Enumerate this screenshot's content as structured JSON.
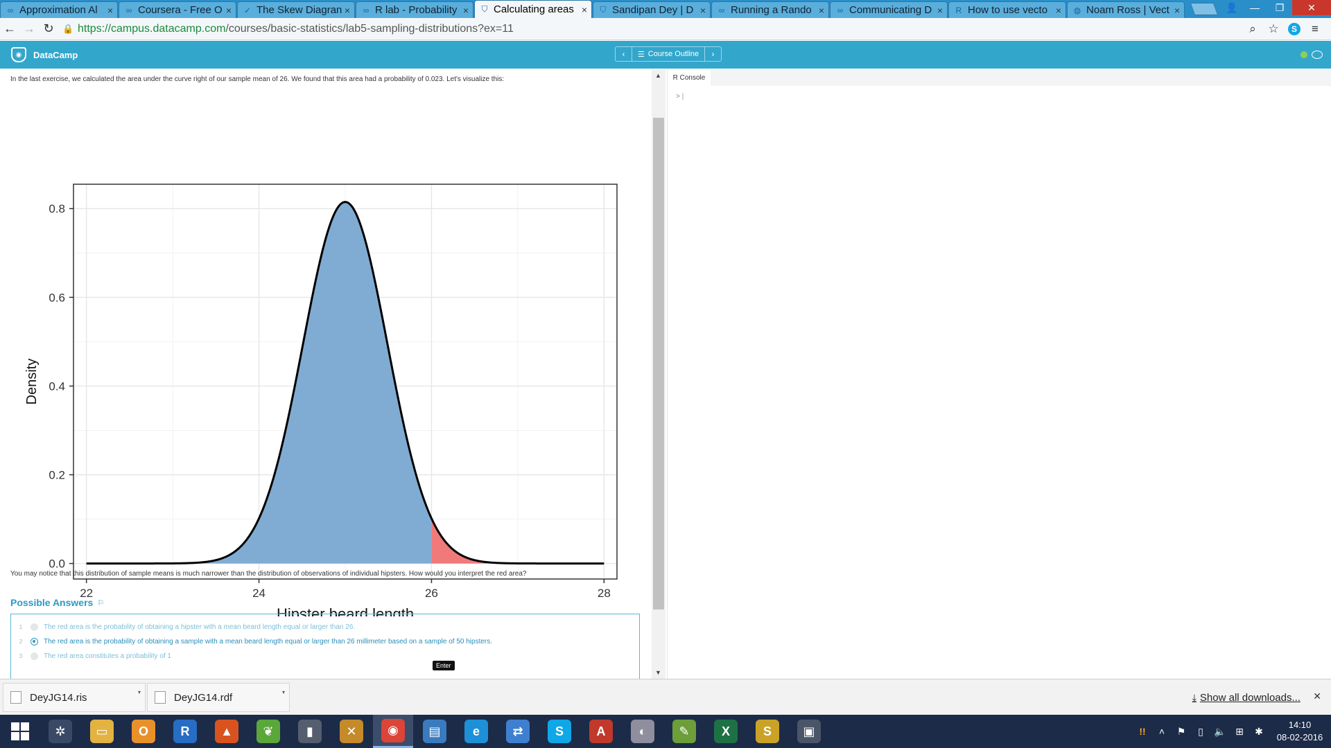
{
  "browser": {
    "tabs": [
      {
        "label": "Approximation Al",
        "icon": "coursera-icon",
        "active": false
      },
      {
        "label": "Coursera - Free O",
        "icon": "coursera-icon",
        "active": false
      },
      {
        "label": "The Skew Diagran",
        "icon": "check-icon",
        "active": false
      },
      {
        "label": "R lab - Probability",
        "icon": "coursera-icon",
        "active": false
      },
      {
        "label": "Calculating areas",
        "icon": "datacamp-icon",
        "active": true
      },
      {
        "label": "Sandipan Dey | D",
        "icon": "datacamp-icon",
        "active": false
      },
      {
        "label": "Running a Rando",
        "icon": "coursera-icon",
        "active": false
      },
      {
        "label": "Communicating D",
        "icon": "coursera-icon",
        "active": false
      },
      {
        "label": "How to use vecto",
        "icon": "r-icon",
        "active": false
      },
      {
        "label": "Noam Ross | Vect",
        "icon": "github-icon",
        "active": false
      }
    ],
    "url_host": "https://campus.datacamp.com",
    "url_path": "/courses/basic-statistics/lab5-sampling-distributions?ex=11"
  },
  "header": {
    "brand": "DataCamp",
    "course_outline": "Course Outline",
    "status_color": "#8fd14f"
  },
  "exercise": {
    "intro": "In the last exercise, we calculated the area under the curve right of our sample mean of 26. We found that this area had a probability of 0.023. Let's visualize this:",
    "question": "You may notice that this distribution of sample means is much narrower than the distribution of observations of individual hipsters. How would you interpret the red area?",
    "answers_title": "Possible Answers",
    "answers": [
      {
        "num": "1",
        "text": "The red area is the probability of obtaining a hipster with a mean beard length equal or larger than 26.",
        "selected": false
      },
      {
        "num": "2",
        "text": "The red area is the probability of obtaining a sample with a mean beard length equal or larger than 26 millimeter based on a sample of 50 hipsters.",
        "selected": true
      },
      {
        "num": "3",
        "text": "The red area constitutes a probability of 1",
        "selected": false
      }
    ],
    "tooltip": "Enter"
  },
  "chart_data": {
    "type": "area",
    "xlabel": "Hipster beard length",
    "ylabel": "Density",
    "xlim": [
      21.85,
      28.15
    ],
    "ylim": [
      -0.035,
      0.855
    ],
    "xticks": [
      "22",
      "24",
      "26",
      "28"
    ],
    "xtick_values": [
      22,
      24,
      26,
      28
    ],
    "yticks": [
      "0.0",
      "0.2",
      "0.4",
      "0.6",
      "0.8"
    ],
    "ytick_values": [
      0,
      0.2,
      0.4,
      0.6,
      0.8
    ],
    "distribution": {
      "mean": 25,
      "sd": 0.49,
      "peak": 0.815
    },
    "x_range": [
      22,
      28
    ],
    "series": [
      {
        "values_desc": "body",
        "from": 22,
        "to": 26,
        "color": "#80acd3"
      },
      {
        "values_desc": "tail",
        "from": 26,
        "to": 28,
        "color": "#f07a7a"
      }
    ],
    "line_color": "#000000",
    "grid": true,
    "legend": "none"
  },
  "console": {
    "tab_label": "R Console",
    "prompt": ">"
  },
  "downloads": {
    "items": [
      "DeyJG14.ris",
      "DeyJG14.rdf"
    ],
    "show_all": "Show all downloads..."
  },
  "taskbar": {
    "apps": [
      {
        "icon": "chrome-settings-icon",
        "color": "#3a4a66",
        "glyph": "✲"
      },
      {
        "icon": "file-explorer-icon",
        "color": "#e3b341",
        "glyph": "▭"
      },
      {
        "icon": "outlook-icon",
        "color": "#e8912b",
        "glyph": "O"
      },
      {
        "icon": "r-app-icon",
        "color": "#276dc3",
        "glyph": "R"
      },
      {
        "icon": "matlab-icon",
        "color": "#d9531e",
        "glyph": "▲"
      },
      {
        "icon": "spring-icon",
        "color": "#5aa83a",
        "glyph": "❦"
      },
      {
        "icon": "book-icon",
        "color": "#555e6e",
        "glyph": "▮"
      },
      {
        "icon": "tools-icon",
        "color": "#c58a2a",
        "glyph": "✕"
      },
      {
        "icon": "chrome-icon",
        "color": "#db4437",
        "glyph": "◉",
        "active": true
      },
      {
        "icon": "security-icon",
        "color": "#3a7bbf",
        "glyph": "▤"
      },
      {
        "icon": "internet-explorer-icon",
        "color": "#1e90d8",
        "glyph": "e"
      },
      {
        "icon": "network-icon",
        "color": "#3f7fd0",
        "glyph": "⇄"
      },
      {
        "icon": "skype-icon",
        "color": "#10a7e8",
        "glyph": "S"
      },
      {
        "icon": "pdf-icon",
        "color": "#c0392b",
        "glyph": "A"
      },
      {
        "icon": "paint-icon",
        "color": "#8e8e9e",
        "glyph": "◐"
      },
      {
        "icon": "notepad-icon",
        "color": "#6d9e3a",
        "glyph": "✎"
      },
      {
        "icon": "excel-icon",
        "color": "#1e7145",
        "glyph": "X"
      },
      {
        "icon": "slack-icon",
        "color": "#c9a227",
        "glyph": "S"
      },
      {
        "icon": "window-icon",
        "color": "#4a5568",
        "glyph": "▣"
      }
    ],
    "time": "14:10",
    "date": "08-02-2016"
  }
}
